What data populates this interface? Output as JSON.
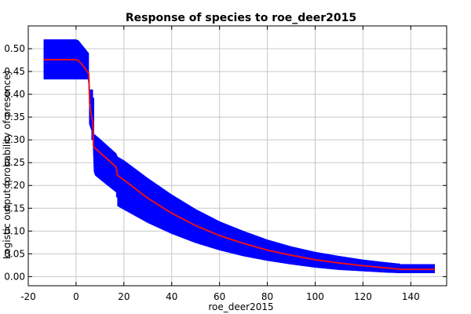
{
  "chart_data": {
    "type": "area",
    "title": "Response of species to roe_deer2015",
    "xlabel": "roe_deer2015",
    "ylabel": "Logistic output (probability of presence)",
    "xlim": [
      -20,
      155
    ],
    "ylim": [
      -0.02,
      0.55
    ],
    "xticks": [
      -20,
      0,
      20,
      40,
      60,
      80,
      100,
      120,
      140
    ],
    "yticks": [
      0.0,
      0.05,
      0.1,
      0.15,
      0.2,
      0.25,
      0.3,
      0.35,
      0.4,
      0.45,
      0.5
    ],
    "grid": true,
    "series": [
      {
        "role": "mean",
        "color": "#e8101a",
        "points": [
          [
            -13.5,
            0.476
          ],
          [
            0,
            0.476
          ],
          [
            1,
            0.474
          ],
          [
            3,
            0.462
          ],
          [
            5.3,
            0.445
          ],
          [
            5.7,
            0.38
          ],
          [
            6.5,
            0.35
          ],
          [
            7,
            0.34
          ],
          [
            7.3,
            0.285
          ],
          [
            10,
            0.272
          ],
          [
            13,
            0.258
          ],
          [
            16.8,
            0.24
          ],
          [
            17.3,
            0.222
          ],
          [
            20,
            0.212
          ],
          [
            30,
            0.172
          ],
          [
            40,
            0.139
          ],
          [
            50,
            0.112
          ],
          [
            60,
            0.09
          ],
          [
            70,
            0.073
          ],
          [
            80,
            0.058
          ],
          [
            90,
            0.047
          ],
          [
            100,
            0.037
          ],
          [
            110,
            0.03
          ],
          [
            120,
            0.024
          ],
          [
            130,
            0.019
          ],
          [
            136,
            0.016
          ],
          [
            150,
            0.016
          ]
        ]
      },
      {
        "role": "band-upper",
        "color": "#0000ff",
        "points": [
          [
            -13.5,
            0.52
          ],
          [
            0,
            0.52
          ],
          [
            1,
            0.518
          ],
          [
            5.3,
            0.49
          ],
          [
            5.3,
            0.41
          ],
          [
            7,
            0.41
          ],
          [
            7,
            0.392
          ],
          [
            7.5,
            0.392
          ],
          [
            7.5,
            0.313
          ],
          [
            10,
            0.302
          ],
          [
            16.8,
            0.27
          ],
          [
            17.3,
            0.263
          ],
          [
            20,
            0.255
          ],
          [
            30,
            0.216
          ],
          [
            40,
            0.18
          ],
          [
            50,
            0.148
          ],
          [
            60,
            0.121
          ],
          [
            70,
            0.1
          ],
          [
            80,
            0.081
          ],
          [
            90,
            0.066
          ],
          [
            100,
            0.054
          ],
          [
            110,
            0.045
          ],
          [
            120,
            0.037
          ],
          [
            130,
            0.031
          ],
          [
            135.5,
            0.028
          ],
          [
            135.5,
            0.027
          ],
          [
            150,
            0.027
          ]
        ]
      },
      {
        "role": "band-lower",
        "color": "#0000ff",
        "points": [
          [
            150,
            0.008
          ],
          [
            135.5,
            0.008
          ],
          [
            130,
            0.009
          ],
          [
            120,
            0.012
          ],
          [
            110,
            0.015
          ],
          [
            100,
            0.02
          ],
          [
            90,
            0.027
          ],
          [
            80,
            0.035
          ],
          [
            70,
            0.045
          ],
          [
            60,
            0.058
          ],
          [
            50,
            0.074
          ],
          [
            40,
            0.094
          ],
          [
            30,
            0.118
          ],
          [
            20,
            0.147
          ],
          [
            17.3,
            0.155
          ],
          [
            17.3,
            0.173
          ],
          [
            16.8,
            0.175
          ],
          [
            16.8,
            0.185
          ],
          [
            12,
            0.205
          ],
          [
            8,
            0.222
          ],
          [
            7.5,
            0.23
          ],
          [
            7,
            0.3
          ],
          [
            6.5,
            0.3
          ],
          [
            6.5,
            0.32
          ],
          [
            5.5,
            0.335
          ],
          [
            5.5,
            0.41
          ],
          [
            5,
            0.433
          ],
          [
            0,
            0.433
          ],
          [
            -13.5,
            0.433
          ]
        ]
      }
    ]
  }
}
